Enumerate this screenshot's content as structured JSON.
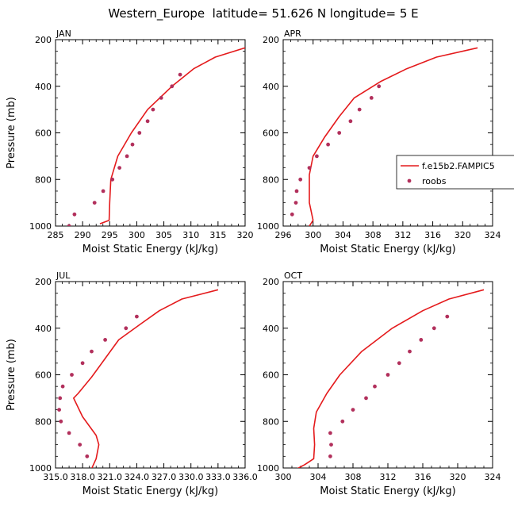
{
  "figure": {
    "title": "Western_Europe  latitude= 51.626 N longitude= 5 E"
  },
  "legend": {
    "model_label": "f.e15b2.FAMPIC5",
    "obs_label": "roobs",
    "model_color": "#e41a1c",
    "obs_color": "#b2305c"
  },
  "chart_data": [
    {
      "type": "line",
      "panel_label": "JAN",
      "xlabel": "Moist Static Energy (kJ/kg)",
      "ylabel": "Pressure (mb)",
      "xlim": [
        285,
        320
      ],
      "ylim": [
        1000,
        200
      ],
      "y_reversed": true,
      "xticks": [
        285,
        290,
        295,
        300,
        305,
        310,
        315,
        320
      ],
      "xtick_labels": [
        "285",
        "290",
        "295",
        "300",
        "305",
        "310",
        "315",
        "320"
      ],
      "yticks": [
        200,
        400,
        600,
        800,
        1000
      ],
      "ytick_labels": [
        "200",
        "400",
        "600",
        "800",
        "1000"
      ],
      "series": [
        {
          "type": "line",
          "x": [
            320.0,
            314.5,
            310.5,
            306.5,
            302.0,
            299.0,
            296.5,
            295.2,
            295.0,
            294.9,
            293.2
          ],
          "y": [
            235,
            275,
            325,
            400,
            500,
            600,
            700,
            800,
            900,
            975,
            990
          ]
        },
        {
          "type": "scatter",
          "x": [
            308.0,
            306.5,
            304.5,
            303.0,
            302.0,
            300.5,
            299.2,
            298.2,
            296.8,
            295.5,
            293.8,
            292.2,
            288.5,
            287.5
          ],
          "y": [
            350,
            400,
            450,
            500,
            550,
            600,
            650,
            700,
            750,
            800,
            850,
            900,
            950,
            1000
          ]
        }
      ]
    },
    {
      "type": "line",
      "panel_label": "APR",
      "xlabel": "Moist Static Energy (kJ/kg)",
      "ylabel": "",
      "xlim": [
        296,
        324
      ],
      "ylim": [
        1000,
        200
      ],
      "y_reversed": true,
      "xticks": [
        296,
        300,
        304,
        308,
        312,
        316,
        320,
        324
      ],
      "xtick_labels": [
        "296",
        "300",
        "304",
        "308",
        "312",
        "316",
        "320",
        "324"
      ],
      "yticks": [
        200,
        400,
        600,
        800,
        1000
      ],
      "ytick_labels": [
        "200",
        "400",
        "600",
        "800",
        "1000"
      ],
      "series": [
        {
          "type": "line",
          "x": [
            322.0,
            316.5,
            312.5,
            309.0,
            305.5,
            303.5,
            301.5,
            300.0,
            299.5,
            299.5,
            300.0,
            299.5
          ],
          "y": [
            235,
            275,
            325,
            380,
            450,
            530,
            620,
            700,
            780,
            900,
            975,
            1000
          ]
        },
        {
          "type": "scatter",
          "x": [
            308.8,
            307.8,
            306.2,
            305.0,
            303.5,
            302.0,
            300.5,
            299.5,
            298.3,
            297.8,
            297.7,
            297.2
          ],
          "y": [
            400,
            450,
            500,
            550,
            600,
            650,
            700,
            750,
            800,
            850,
            900,
            950
          ]
        }
      ]
    },
    {
      "type": "line",
      "panel_label": "JUL",
      "xlabel": "Moist Static Energy (kJ/kg)",
      "ylabel": "Pressure (mb)",
      "xlim": [
        315.0,
        336.0
      ],
      "ylim": [
        1000,
        200
      ],
      "y_reversed": true,
      "xticks": [
        315,
        318,
        321,
        324,
        327,
        330,
        333,
        336
      ],
      "xtick_labels": [
        "315.0",
        "318.0",
        "321.0",
        "324.0",
        "327.0",
        "330.0",
        "333.0",
        "336.0"
      ],
      "yticks": [
        200,
        400,
        600,
        800,
        1000
      ],
      "ytick_labels": [
        "200",
        "400",
        "600",
        "800",
        "1000"
      ],
      "series": [
        {
          "type": "line",
          "x": [
            333.0,
            329.0,
            326.5,
            324.5,
            322.0,
            320.5,
            319.0,
            317.5,
            317.0,
            318.0,
            319.5,
            319.8,
            319.5,
            318.8
          ],
          "y": [
            235,
            275,
            325,
            380,
            450,
            530,
            610,
            680,
            700,
            780,
            860,
            900,
            960,
            1020
          ]
        },
        {
          "type": "scatter",
          "x": [
            324.0,
            322.8,
            320.5,
            319.0,
            318.0,
            316.8,
            315.8,
            315.5,
            315.4,
            315.6,
            316.5,
            317.7,
            318.5
          ],
          "y": [
            350,
            400,
            450,
            500,
            550,
            600,
            650,
            700,
            750,
            800,
            850,
            900,
            950
          ]
        }
      ]
    },
    {
      "type": "line",
      "panel_label": "OCT",
      "xlabel": "Moist Static Energy (kJ/kg)",
      "ylabel": "",
      "xlim": [
        300,
        324
      ],
      "ylim": [
        1000,
        200
      ],
      "y_reversed": true,
      "xticks": [
        300,
        304,
        308,
        312,
        316,
        320,
        324
      ],
      "xtick_labels": [
        "300",
        "304",
        "308",
        "312",
        "316",
        "320",
        "324"
      ],
      "yticks": [
        200,
        400,
        600,
        800,
        1000
      ],
      "ytick_labels": [
        "200",
        "400",
        "600",
        "800",
        "1000"
      ],
      "series": [
        {
          "type": "line",
          "x": [
            323.0,
            319.0,
            316.0,
            312.5,
            309.0,
            306.5,
            305.0,
            303.8,
            303.5,
            303.6,
            303.5,
            302.5,
            301.5
          ],
          "y": [
            235,
            275,
            325,
            400,
            500,
            600,
            680,
            760,
            830,
            900,
            960,
            985,
            1005
          ]
        },
        {
          "type": "scatter",
          "x": [
            318.8,
            317.3,
            315.8,
            314.5,
            313.3,
            312.0,
            310.5,
            309.5,
            308.0,
            306.8,
            305.4,
            305.5,
            305.4
          ],
          "y": [
            350,
            400,
            450,
            500,
            550,
            600,
            650,
            700,
            750,
            800,
            850,
            900,
            950
          ]
        }
      ]
    }
  ]
}
